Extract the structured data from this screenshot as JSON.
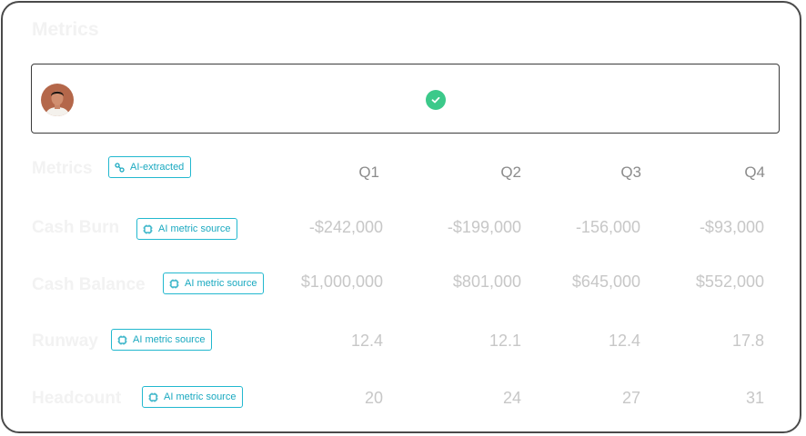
{
  "page": {
    "title": "Metrics"
  },
  "header_row": {
    "label": "Metrics",
    "badge": "AI-extracted",
    "quarters": [
      "Q1",
      "Q2",
      "Q3",
      "Q4"
    ]
  },
  "user_row": {
    "avatar_icon": "user-avatar",
    "status_icon": "check-circle-icon",
    "status_color": "#3cc98a"
  },
  "metrics": [
    {
      "label": "Cash Burn",
      "badge": "AI metric source",
      "values": [
        "-$242,000",
        "-$199,000",
        "-156,000",
        "-$93,000"
      ]
    },
    {
      "label": "Cash Balance",
      "badge": "AI metric source",
      "values": [
        "$1,000,000",
        "$801,000",
        "$645,000",
        "$552,000"
      ]
    },
    {
      "label": "Runway",
      "badge": "AI metric source",
      "values": [
        "12.4",
        "12.1",
        "12.4",
        "17.8"
      ]
    },
    {
      "label": "Headcount",
      "badge": "AI metric source",
      "values": [
        "20",
        "24",
        "27",
        "31"
      ]
    }
  ],
  "colors": {
    "accent": "#22b8cf",
    "border": "#4a4a4a"
  }
}
